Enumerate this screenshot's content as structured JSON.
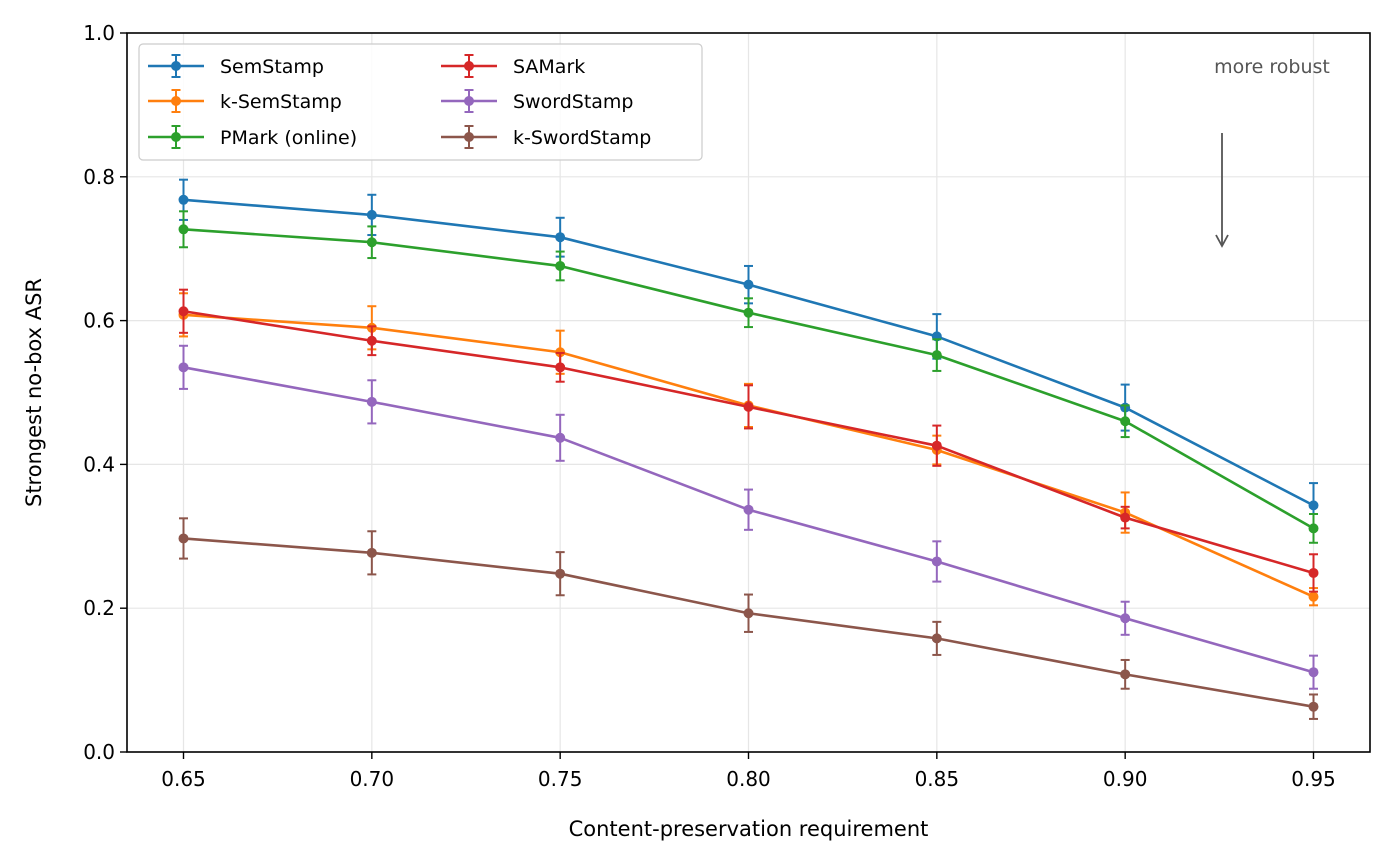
{
  "chart_data": {
    "type": "line",
    "title": "",
    "xlabel": "Content-preservation requirement",
    "ylabel": "Strongest no-box ASR",
    "x": [
      0.65,
      0.7,
      0.75,
      0.8,
      0.85,
      0.9,
      0.95
    ],
    "x_tick_labels": [
      "0.65",
      "0.70",
      "0.75",
      "0.80",
      "0.85",
      "0.90",
      "0.95"
    ],
    "xlim": [
      0.635,
      0.965
    ],
    "ylim": [
      0.0,
      1.0
    ],
    "y_ticks": [
      0.0,
      0.2,
      0.4,
      0.6,
      0.8,
      1.0
    ],
    "y_tick_labels": [
      "0.0",
      "0.2",
      "0.4",
      "0.6",
      "0.8",
      "1.0"
    ],
    "grid": true,
    "legend_position": "top-left",
    "legend_columns": 2,
    "series": [
      {
        "name": "SemStamp",
        "color": "#1f77b4",
        "values": [
          0.768,
          0.747,
          0.716,
          0.65,
          0.578,
          0.479,
          0.343
        ],
        "errors": [
          0.028,
          0.028,
          0.027,
          0.026,
          0.031,
          0.032,
          0.031
        ]
      },
      {
        "name": "k-SemStamp",
        "color": "#ff7f0e",
        "values": [
          0.608,
          0.59,
          0.556,
          0.482,
          0.42,
          0.333,
          0.216
        ],
        "errors": [
          0.03,
          0.03,
          0.03,
          0.03,
          0.02,
          0.028,
          0.012
        ]
      },
      {
        "name": "PMark (online)",
        "color": "#2ca02c",
        "values": [
          0.727,
          0.709,
          0.676,
          0.611,
          0.552,
          0.46,
          0.311
        ],
        "errors": [
          0.025,
          0.022,
          0.02,
          0.02,
          0.022,
          0.022,
          0.02
        ]
      },
      {
        "name": "SAMark",
        "color": "#d62728",
        "values": [
          0.613,
          0.572,
          0.535,
          0.48,
          0.426,
          0.326,
          0.249
        ],
        "errors": [
          0.03,
          0.02,
          0.02,
          0.03,
          0.028,
          0.015,
          0.026
        ]
      },
      {
        "name": "SwordStamp",
        "color": "#9467bd",
        "values": [
          0.535,
          0.487,
          0.437,
          0.337,
          0.265,
          0.186,
          0.111
        ],
        "errors": [
          0.03,
          0.03,
          0.032,
          0.028,
          0.028,
          0.023,
          0.023
        ]
      },
      {
        "name": "k-SwordStamp",
        "color": "#8c564b",
        "values": [
          0.297,
          0.277,
          0.248,
          0.193,
          0.158,
          0.108,
          0.063
        ],
        "errors": [
          0.028,
          0.03,
          0.03,
          0.026,
          0.023,
          0.02,
          0.017
        ]
      }
    ],
    "annotations": [
      {
        "text": "more robust",
        "arrow_direction": "down",
        "color": "#555555"
      }
    ]
  }
}
